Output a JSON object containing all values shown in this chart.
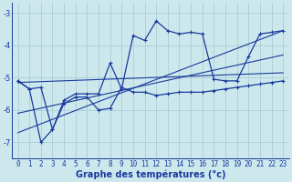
{
  "xlabel": "Graphe des températures (°c)",
  "background_color": "#cce8ed",
  "grid_color": "#aacdd4",
  "line_color": "#1a3a9c",
  "xlim": [
    -0.5,
    23.5
  ],
  "ylim": [
    -7.5,
    -2.7
  ],
  "yticks": [
    -7,
    -6,
    -5,
    -4,
    -3
  ],
  "xticks": [
    0,
    1,
    2,
    3,
    4,
    5,
    6,
    7,
    8,
    9,
    10,
    11,
    12,
    13,
    14,
    15,
    16,
    17,
    18,
    19,
    20,
    21,
    22,
    23
  ],
  "xtick_labels": [
    "0",
    "1",
    "2",
    "3",
    "4",
    "5",
    "6",
    "7",
    "8",
    "9",
    "10",
    "11",
    "12",
    "13",
    "14",
    "15",
    "16",
    "17",
    "18",
    "19",
    "20",
    "21",
    "22",
    "23"
  ],
  "series1_x": [
    0,
    1,
    2,
    3,
    4,
    5,
    6,
    7,
    8,
    9,
    10,
    11,
    12,
    13,
    14,
    15,
    16,
    17,
    18,
    19,
    20,
    21,
    22,
    23
  ],
  "series1_y": [
    -5.1,
    -5.35,
    -7.0,
    -6.6,
    -5.8,
    -5.6,
    -5.6,
    -6.0,
    -5.95,
    -5.3,
    -5.45,
    -5.45,
    -5.55,
    -5.5,
    -5.45,
    -5.45,
    -5.45,
    -5.4,
    -5.35,
    -5.3,
    -5.25,
    -5.2,
    -5.15,
    -5.1
  ],
  "series2_x": [
    0,
    1,
    2,
    3,
    4,
    5,
    6,
    7,
    8,
    9,
    10,
    11,
    12,
    13,
    14,
    15,
    16,
    17,
    18,
    19,
    20,
    21,
    22,
    23
  ],
  "series2_y": [
    -5.1,
    -5.35,
    -5.3,
    -6.6,
    -5.7,
    -5.5,
    -5.5,
    -5.5,
    -4.55,
    -5.35,
    -3.7,
    -3.85,
    -3.25,
    -3.55,
    -3.65,
    -3.6,
    -3.65,
    -5.05,
    -5.1,
    -5.1,
    -4.35,
    -3.65,
    -3.6,
    -3.55
  ],
  "line1_x": [
    0,
    23
  ],
  "line1_y": [
    -5.15,
    -4.85
  ],
  "line2_x": [
    0,
    23
  ],
  "line2_y": [
    -6.1,
    -4.3
  ],
  "line3_x": [
    0,
    23
  ],
  "line3_y": [
    -6.7,
    -3.55
  ],
  "font_size_xlabel": 7,
  "font_size_ticks": 5.5
}
